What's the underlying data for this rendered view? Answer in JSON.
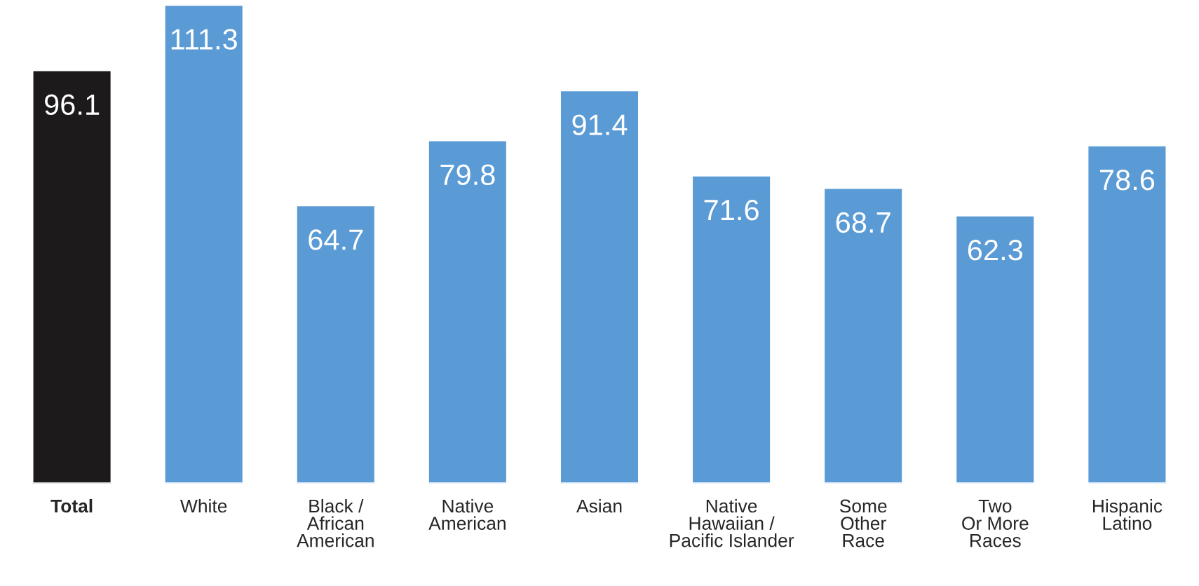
{
  "chart_data": {
    "type": "bar",
    "categories": [
      "Total",
      "White",
      "Black /\nAfrican\nAmerican",
      "Native\nAmerican",
      "Asian",
      "Native\nHawaiian /\nPacific Islander",
      "Some\nOther\nRace",
      "Two\nOr More\nRaces",
      "Hispanic\nLatino"
    ],
    "values": [
      96.1,
      111.3,
      64.7,
      79.8,
      91.4,
      71.6,
      68.7,
      62.3,
      78.6
    ],
    "colors": [
      "#1c1a1b",
      "#5b9bd5",
      "#5b9bd5",
      "#5b9bd5",
      "#5b9bd5",
      "#5b9bd5",
      "#5b9bd5",
      "#5b9bd5",
      "#5b9bd5"
    ],
    "data_labels": true
  }
}
